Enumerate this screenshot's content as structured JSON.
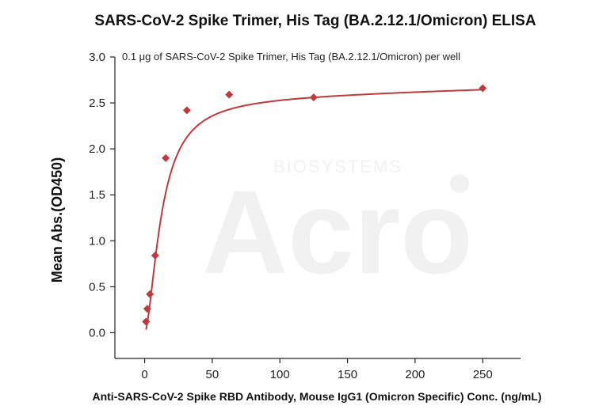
{
  "chart_data": {
    "type": "scatter",
    "title": "SARS-CoV-2 Spike Trimer, His Tag (BA.2.12.1/Omicron) ELISA",
    "annotation": "0.1 μg of SARS-CoV-2 Spike Trimer, His Tag (BA.2.12.1/Omicron) per well",
    "xlabel": "Anti-SARS-CoV-2 Spike RBD Antibody, Mouse IgG1 (Omicron Specific) Conc. (ng/mL)",
    "ylabel": "Mean Abs.(OD450)",
    "xlim": [
      -22,
      278
    ],
    "ylim": [
      -0.28,
      3.0
    ],
    "xticks": [
      0,
      50,
      100,
      150,
      200,
      250
    ],
    "xtick_labels": [
      "0",
      "50",
      "100",
      "150",
      "200",
      "250"
    ],
    "yticks": [
      0.0,
      0.5,
      1.0,
      1.5,
      2.0,
      2.5,
      3.0
    ],
    "ytick_labels": [
      "0.0",
      "0.5",
      "1.0",
      "1.5",
      "2.0",
      "2.5",
      "3.0"
    ],
    "grid": false,
    "legend": "none",
    "watermark": {
      "main": "Acro",
      "sub": "BIOSYSTEMS"
    },
    "series": [
      {
        "marker": "diamond",
        "color": "#c0393b",
        "x": [
          0.98,
          1.95,
          3.9,
          7.8,
          15.6,
          31.25,
          62.5,
          125,
          250
        ],
        "y": [
          0.12,
          0.26,
          0.42,
          0.84,
          1.9,
          2.42,
          2.59,
          2.56,
          2.66
        ]
      }
    ]
  }
}
